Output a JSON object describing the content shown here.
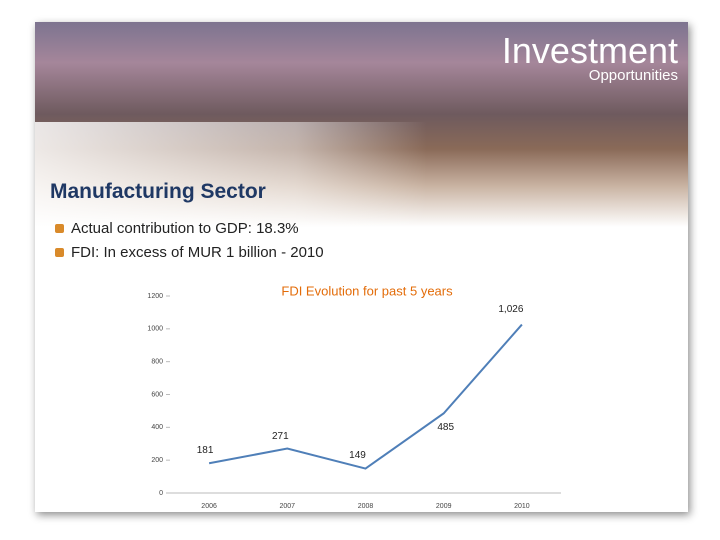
{
  "header": {
    "title": "Investment",
    "subtitle": "Opportunities"
  },
  "heading": "Manufacturing Sector",
  "bullets": [
    "Actual contribution to GDP: 18.3%",
    "FDI: In excess of MUR 1 billion -  2010"
  ],
  "chart_data": {
    "type": "line",
    "title": "FDI Evolution for  past 5 years",
    "categories": [
      "2006",
      "2007",
      "2008",
      "2009",
      "2010"
    ],
    "values": [
      181,
      271,
      149,
      485,
      1026
    ],
    "value_labels": [
      "181",
      "271",
      "149",
      "485",
      "1,026"
    ],
    "color": "#4f7fb8",
    "ylim": [
      0,
      1200
    ],
    "yticks": [
      0,
      200,
      400,
      600,
      800,
      1000,
      1200
    ]
  }
}
